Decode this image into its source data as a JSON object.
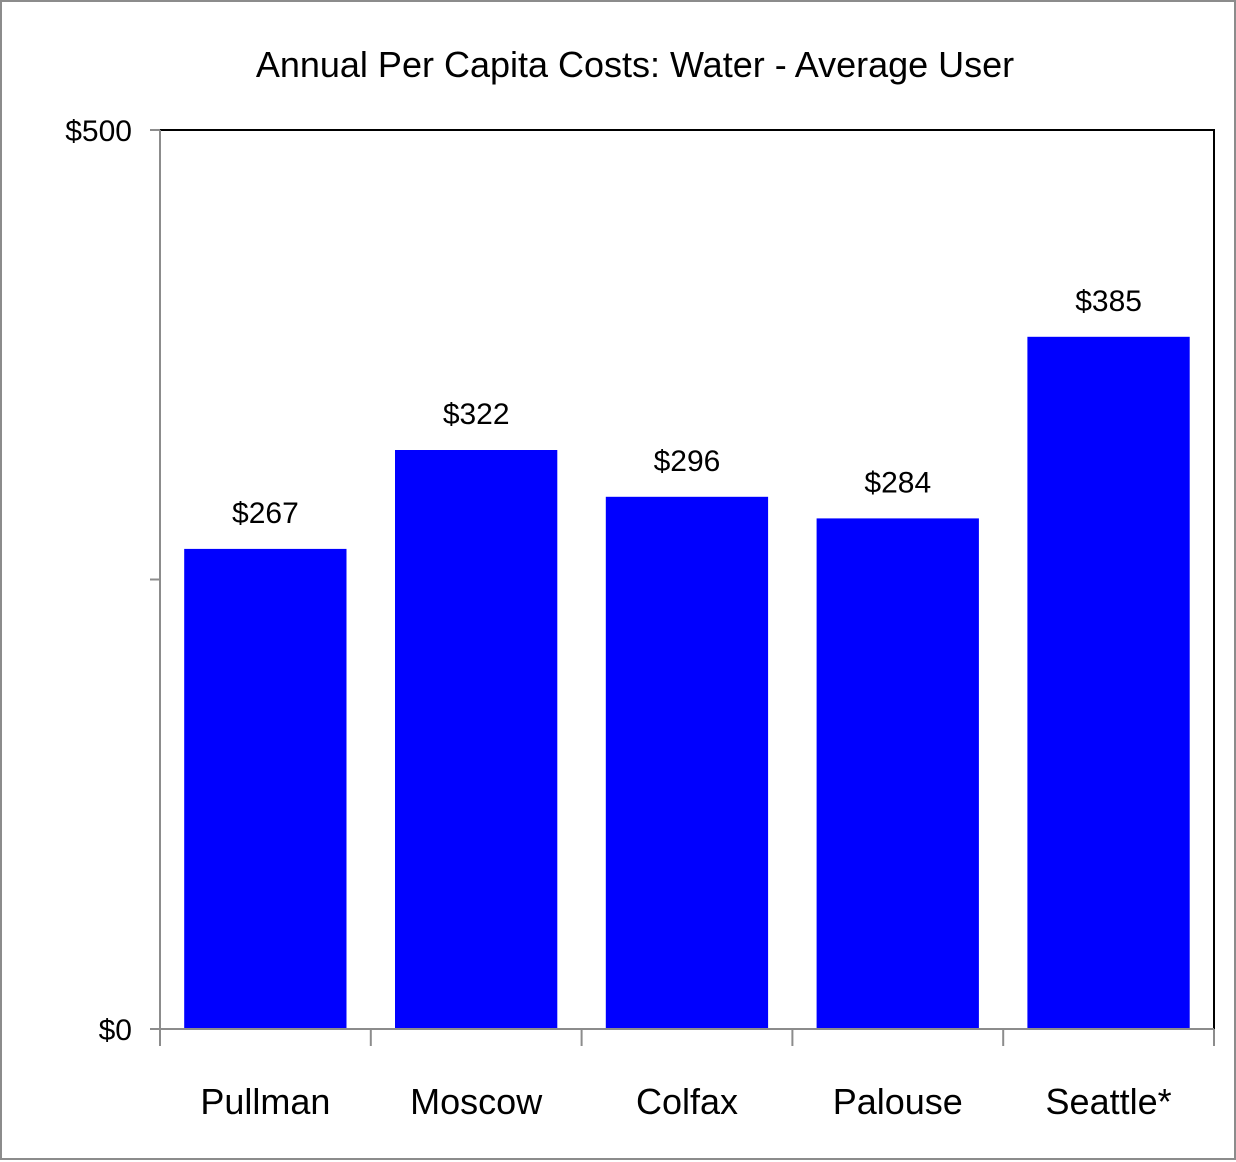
{
  "chart_data": {
    "type": "bar",
    "title": "Annual Per Capita Costs: Water - Average User",
    "xlabel": "",
    "ylabel": "",
    "categories": [
      "Pullman",
      "Moscow",
      "Colfax",
      "Palouse",
      "Seattle*"
    ],
    "values": [
      267,
      322,
      296,
      284,
      385
    ],
    "data_labels": [
      "$267",
      "$322",
      "$296",
      "$284",
      "$385"
    ],
    "ylim": [
      0,
      500
    ],
    "y_ticks": [
      0,
      250,
      500
    ],
    "y_tick_labels": [
      "$0",
      "",
      "$500"
    ],
    "grid": false,
    "legend": "none",
    "colors": {
      "bar": "#0000ff",
      "axis": "#8c8c8c",
      "plot_border": "#000000",
      "frame": "#8c8c8c"
    }
  }
}
